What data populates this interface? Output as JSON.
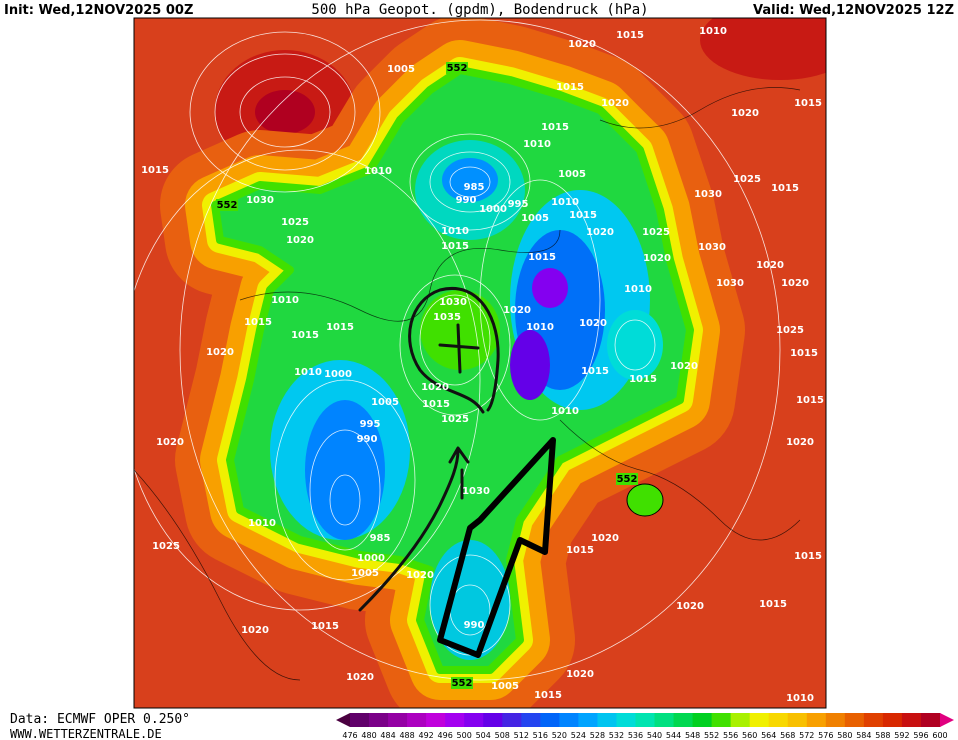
{
  "header": {
    "init": "Init: Wed,12NOV2025 00Z",
    "title": "500 hPa Geopot. (gpdm), Bodendruck (hPa)",
    "valid": "Valid: Wed,12NOV2025 12Z"
  },
  "footer": {
    "source": "Data: ECMWF OPER 0.250°",
    "site": "WWW.WETTERZENTRALE.DE"
  },
  "isobar_labels": [
    "1015",
    "1030",
    "1025",
    "1020",
    "1010",
    "1015",
    "1015",
    "1015",
    "1020",
    "1010",
    "1000",
    "1005",
    "995",
    "990",
    "1020",
    "1010",
    "1025",
    "985",
    "1000",
    "1005",
    "1020",
    "1020",
    "1015",
    "1020",
    "990",
    "1005",
    "1015",
    "1020",
    "1020",
    "1015",
    "1010",
    "1015",
    "1020",
    "1015",
    "1020",
    "1015",
    "1010",
    "1015",
    "1015",
    "1020",
    "1020",
    "1010",
    "1010",
    "1020",
    "1015",
    "1020",
    "1015",
    "1010",
    "1005",
    "1000",
    "995",
    "990",
    "985",
    "1005",
    "1010",
    "1015",
    "1020",
    "1015",
    "1020",
    "1015",
    "1010",
    "1005",
    "1010",
    "1030",
    "1035",
    "1020",
    "1015",
    "1025",
    "1030",
    "1020",
    "1015",
    "1030",
    "1025",
    "1015",
    "1030",
    "1020",
    "1030",
    "1020",
    "1025",
    "1015",
    "1025",
    "1020",
    "1010",
    "1015"
  ],
  "contour_labels": [
    "552",
    "552",
    "552",
    "552"
  ],
  "colorbar": {
    "levels": [
      476,
      480,
      484,
      488,
      492,
      496,
      500,
      504,
      508,
      512,
      516,
      520,
      524,
      528,
      532,
      536,
      540,
      544,
      548,
      552,
      556,
      560,
      564,
      568,
      572,
      576,
      580,
      584,
      588,
      592,
      596,
      600
    ],
    "colors": [
      "#4a0040",
      "#60006a",
      "#7a0088",
      "#9400a4",
      "#ac00c0",
      "#c000dc",
      "#a400f0",
      "#8400f0",
      "#6400e8",
      "#4424e4",
      "#2444f0",
      "#0064f8",
      "#0084ff",
      "#00a4ff",
      "#00c4f0",
      "#00dcd8",
      "#00e4b0",
      "#00e080",
      "#00d850",
      "#00d020",
      "#40e000",
      "#a8f000",
      "#f0f000",
      "#f8d800",
      "#f8c000",
      "#f8a000",
      "#f08000",
      "#e86000",
      "#e04000",
      "#d82800",
      "#c81010",
      "#b00020",
      "#e00080"
    ]
  }
}
